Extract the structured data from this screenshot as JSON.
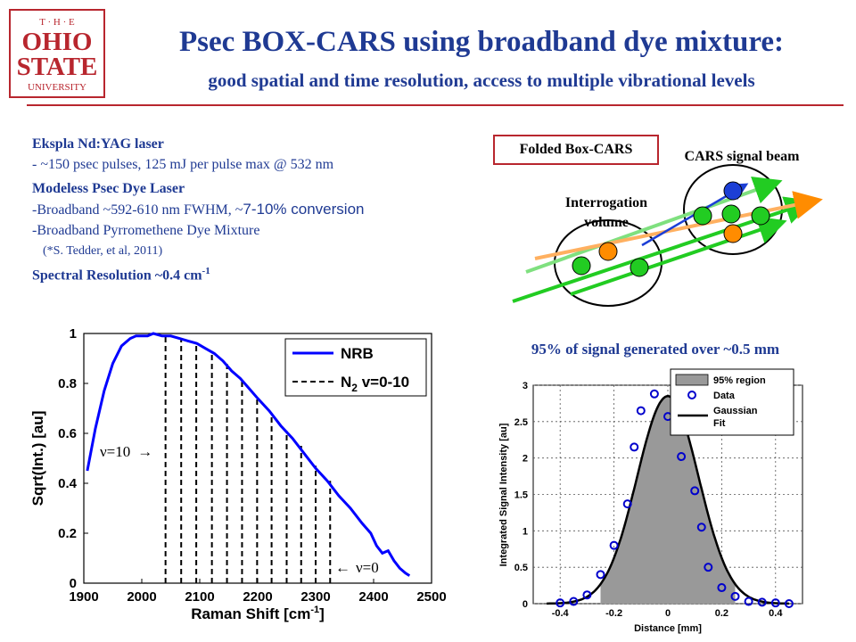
{
  "logo": {
    "line1": "T · H · E",
    "line2": "OHIO",
    "line3": "STATE",
    "line4": "UNIVERSITY"
  },
  "header": {
    "title": "Psec BOX-CARS using broadband dye mixture:",
    "subtitle": "good spatial and time resolution, access to multiple vibrational levels"
  },
  "specs": {
    "laser_title": "Ekspla Nd:YAG laser",
    "laser_detail": "- ~150 psec pulses, 125 mJ per pulse max @ 532 nm",
    "dye_title": "Modeless Psec Dye Laser",
    "dye_line1_a": "-Broadband ~592-610 nm FWHM, ~",
    "dye_line1_b": "7-10% conversion",
    "dye_line2": "-Broadband Pyrromethene Dye Mixture",
    "dye_ref": "(*S. Tedder, et al, 2011)",
    "resolution": "Spectral Resolution ~0.4 cm",
    "resolution_exp": "-1"
  },
  "diagram": {
    "box_label": "Folded Box-CARS",
    "signal_label": "CARS signal beam",
    "volume_label_1": "Interrogation",
    "volume_label_2": "volume",
    "colors": {
      "pump": "#22cc22",
      "stokes": "#ff8c00",
      "signal": "#1c3fd6"
    }
  },
  "chart_data": [
    {
      "type": "line",
      "xlabel": "Raman Shift [cm",
      "xlabel_exp": "-1",
      "xlabel_close": "]",
      "ylabel": "Sqrt(Int.) [au]",
      "xlim": [
        1900,
        2500
      ],
      "ylim": [
        0,
        1
      ],
      "xticks": [
        1900,
        2000,
        2100,
        2200,
        2300,
        2400,
        2500
      ],
      "yticks": [
        0,
        0.2,
        0.4,
        0.6,
        0.8,
        1
      ],
      "ytick_labels": [
        "0",
        "0.2",
        "0.4",
        "0.6",
        "0.8",
        "1"
      ],
      "legend_position": "top-right",
      "legend": {
        "nrb": "NRB",
        "n2_a": "N",
        "n2_sub": "2",
        "n2_b": " v=0-10"
      },
      "annotations": {
        "v10": "ν=10",
        "v10_arrow": "→",
        "v0_arrow": "←",
        "v0": "ν=0"
      },
      "series": [
        {
          "name": "NRB",
          "color": "#0000ff",
          "x": [
            1906,
            1920,
            1935,
            1950,
            1965,
            1980,
            1990,
            2000,
            2010,
            2020,
            2035,
            2050,
            2065,
            2080,
            2095,
            2110,
            2125,
            2140,
            2155,
            2170,
            2185,
            2200,
            2220,
            2240,
            2260,
            2280,
            2300,
            2320,
            2340,
            2360,
            2380,
            2395,
            2405,
            2415,
            2425,
            2435,
            2445,
            2455,
            2462
          ],
          "y": [
            0.45,
            0.62,
            0.77,
            0.88,
            0.95,
            0.98,
            0.99,
            0.99,
            0.99,
            1.0,
            0.99,
            0.99,
            0.98,
            0.97,
            0.96,
            0.94,
            0.92,
            0.89,
            0.85,
            0.82,
            0.78,
            0.74,
            0.69,
            0.63,
            0.58,
            0.52,
            0.46,
            0.41,
            0.35,
            0.3,
            0.24,
            0.2,
            0.15,
            0.12,
            0.13,
            0.09,
            0.06,
            0.04,
            0.03
          ]
        }
      ],
      "n2_lines": [
        {
          "x": 2041,
          "ytop": 0.99
        },
        {
          "x": 2068,
          "ytop": 0.98
        },
        {
          "x": 2094,
          "ytop": 0.96
        },
        {
          "x": 2121,
          "ytop": 0.93
        },
        {
          "x": 2147,
          "ytop": 0.88
        },
        {
          "x": 2173,
          "ytop": 0.81
        },
        {
          "x": 2199,
          "ytop": 0.74
        },
        {
          "x": 2224,
          "ytop": 0.67
        },
        {
          "x": 2250,
          "ytop": 0.61
        },
        {
          "x": 2275,
          "ytop": 0.55
        },
        {
          "x": 2300,
          "ytop": 0.47
        },
        {
          "x": 2325,
          "ytop": 0.41
        }
      ]
    },
    {
      "type": "scatter",
      "title": "95% of signal generated over ~0.5 mm",
      "xlabel": "Distance [mm]",
      "ylabel": "Integrated Signal Intensity [au]",
      "xlim": [
        -0.5,
        0.5
      ],
      "ylim": [
        0,
        3
      ],
      "xticks": [
        -0.4,
        -0.2,
        0,
        0.2,
        0.4
      ],
      "xtick_labels": [
        "-0.4",
        "-0.2",
        "0",
        "0.2",
        "0.4"
      ],
      "yticks": [
        0,
        0.5,
        1,
        1.5,
        2,
        2.5,
        3
      ],
      "ytick_labels": [
        "0",
        "0.5",
        "1",
        "1.5",
        "2",
        "2.5",
        "3"
      ],
      "legend_position": "top-right",
      "legend": {
        "region": "95% region",
        "data": "Data",
        "fit_a": "Gaussian",
        "fit_b": "Fit"
      },
      "region": [
        -0.25,
        0.25
      ],
      "gaussian": {
        "amplitude": 2.85,
        "center": 0,
        "sigma": 0.115
      },
      "series": [
        {
          "name": "Data",
          "x": [
            -0.4,
            -0.35,
            -0.3,
            -0.25,
            -0.2,
            -0.15,
            -0.125,
            -0.1,
            -0.05,
            0,
            0.05,
            0.1,
            0.125,
            0.15,
            0.2,
            0.25,
            0.3,
            0.35,
            0.4,
            0.45
          ],
          "y": [
            0.01,
            0.03,
            0.12,
            0.4,
            0.8,
            1.37,
            2.15,
            2.65,
            2.88,
            2.57,
            2.02,
            1.55,
            1.05,
            0.5,
            0.22,
            0.1,
            0.03,
            0.02,
            0.01,
            0.0
          ]
        }
      ]
    }
  ]
}
